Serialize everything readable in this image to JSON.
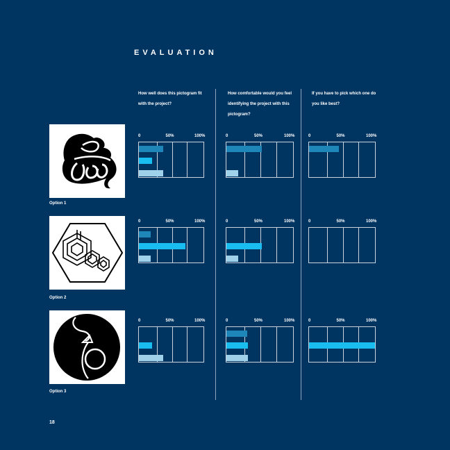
{
  "page": {
    "heading": "EVALUATION",
    "page_number": "18"
  },
  "questions": [
    {
      "text": "How well does this pictogram fit with the project?"
    },
    {
      "text": "How comfortable would you feel identifying the project with this pictogram?"
    },
    {
      "text": "If you have to pick which one do you like best?"
    }
  ],
  "options": [
    {
      "label": "Option 1",
      "pictogram_icon": "spiral-pictogram-icon"
    },
    {
      "label": "Option 2",
      "pictogram_icon": "hexagon-chain-pictogram-icon"
    },
    {
      "label": "Option 3",
      "pictogram_icon": "circle-loop-pictogram-icon"
    }
  ],
  "colors": {
    "background": "#003461",
    "frame": "#c9d4de",
    "bar_dark": "#1e86b8",
    "bar_bright": "#19bdf0",
    "bar_light": "#9fd2ea"
  },
  "chart_data": [
    {
      "type": "bar",
      "option": "Option 1",
      "question": 1,
      "tick_labels": [
        "0",
        "50%",
        "100%"
      ],
      "xlim": [
        0,
        100
      ],
      "values": [
        38,
        20,
        38
      ]
    },
    {
      "type": "bar",
      "option": "Option 1",
      "question": 2,
      "tick_labels": [
        "0",
        "50%",
        "100%"
      ],
      "xlim": [
        0,
        100
      ],
      "values": [
        53,
        0,
        18
      ]
    },
    {
      "type": "bar",
      "option": "Option 1",
      "question": 3,
      "tick_labels": [
        "0",
        "50%",
        "100%"
      ],
      "xlim": [
        0,
        100
      ],
      "values": [
        45,
        0,
        0
      ]
    },
    {
      "type": "bar",
      "option": "Option 2",
      "question": 1,
      "tick_labels": [
        "0",
        "50%",
        "100%"
      ],
      "xlim": [
        0,
        100
      ],
      "values": [
        18,
        72,
        18
      ]
    },
    {
      "type": "bar",
      "option": "Option 2",
      "question": 2,
      "tick_labels": [
        "0",
        "50%",
        "100%"
      ],
      "xlim": [
        0,
        100
      ],
      "values": [
        0,
        53,
        18
      ]
    },
    {
      "type": "bar",
      "option": "Option 2",
      "question": 3,
      "tick_labels": [
        "0",
        "50%",
        "100%"
      ],
      "xlim": [
        0,
        100
      ],
      "values": [
        0,
        0,
        0
      ]
    },
    {
      "type": "bar",
      "option": "Option 3",
      "question": 1,
      "tick_labels": [
        "0",
        "50%",
        "100%"
      ],
      "xlim": [
        0,
        100
      ],
      "values": [
        0,
        20,
        38
      ]
    },
    {
      "type": "bar",
      "option": "Option 3",
      "question": 2,
      "tick_labels": [
        "0",
        "50%",
        "100%"
      ],
      "xlim": [
        0,
        100
      ],
      "values": [
        31,
        32,
        32
      ]
    },
    {
      "type": "bar",
      "option": "Option 3",
      "question": 3,
      "tick_labels": [
        "0",
        "50%",
        "100%"
      ],
      "xlim": [
        0,
        100
      ],
      "values": [
        0,
        100,
        0
      ]
    }
  ]
}
